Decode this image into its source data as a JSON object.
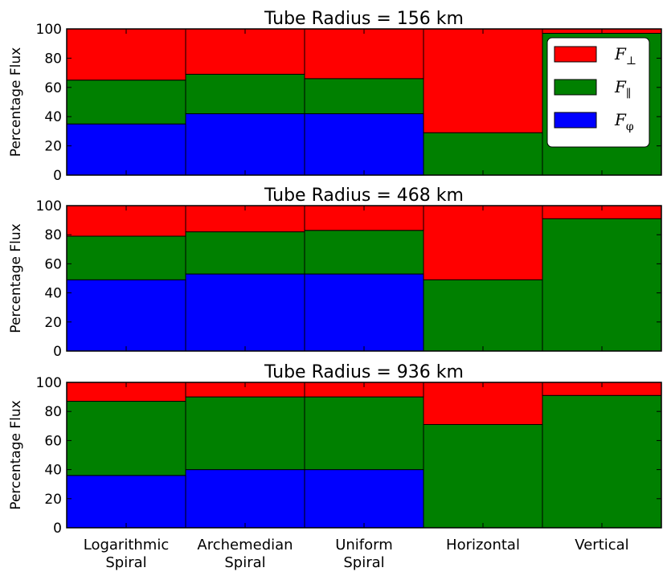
{
  "chart_data": {
    "type": "bar",
    "stacked": true,
    "categories": [
      [
        "Logarithmic",
        "Spiral"
      ],
      [
        "Archemedian",
        "Spiral"
      ],
      [
        "Uniform",
        "Spiral"
      ],
      [
        "Horizontal"
      ],
      [
        "Vertical"
      ]
    ],
    "ylabel": "Percentage Flux",
    "ylim": [
      0,
      100
    ],
    "yticks": [
      0,
      20,
      40,
      60,
      80,
      100
    ],
    "legend": {
      "placement": "top-right",
      "entries": [
        {
          "base": "F",
          "sub": "⊥",
          "color": "#ff0000"
        },
        {
          "base": "F",
          "sub": "∥",
          "color": "#008000"
        },
        {
          "base": "F",
          "sub": "φ",
          "color": "#0000ff"
        }
      ]
    },
    "panels": [
      {
        "title": "Tube Radius = 156 km",
        "series": [
          {
            "values": [
              35,
              42,
              42,
              0,
              0
            ],
            "color": "#0000ff"
          },
          {
            "values": [
              30,
              27,
              24,
              29,
              97
            ],
            "color": "#008000"
          },
          {
            "values": [
              35,
              31,
              34,
              71,
              3
            ],
            "color": "#ff0000"
          }
        ]
      },
      {
        "title": "Tube Radius = 468 km",
        "series": [
          {
            "values": [
              49,
              53,
              53,
              0,
              0
            ],
            "color": "#0000ff"
          },
          {
            "values": [
              30,
              29,
              30,
              49,
              91
            ],
            "color": "#008000"
          },
          {
            "values": [
              21,
              18,
              17,
              51,
              9
            ],
            "color": "#ff0000"
          }
        ]
      },
      {
        "title": "Tube Radius = 936 km",
        "series": [
          {
            "values": [
              36,
              40,
              40,
              0,
              0
            ],
            "color": "#0000ff"
          },
          {
            "values": [
              51,
              50,
              50,
              71,
              91
            ],
            "color": "#008000"
          },
          {
            "values": [
              13,
              10,
              10,
              29,
              9
            ],
            "color": "#ff0000"
          }
        ]
      }
    ]
  }
}
